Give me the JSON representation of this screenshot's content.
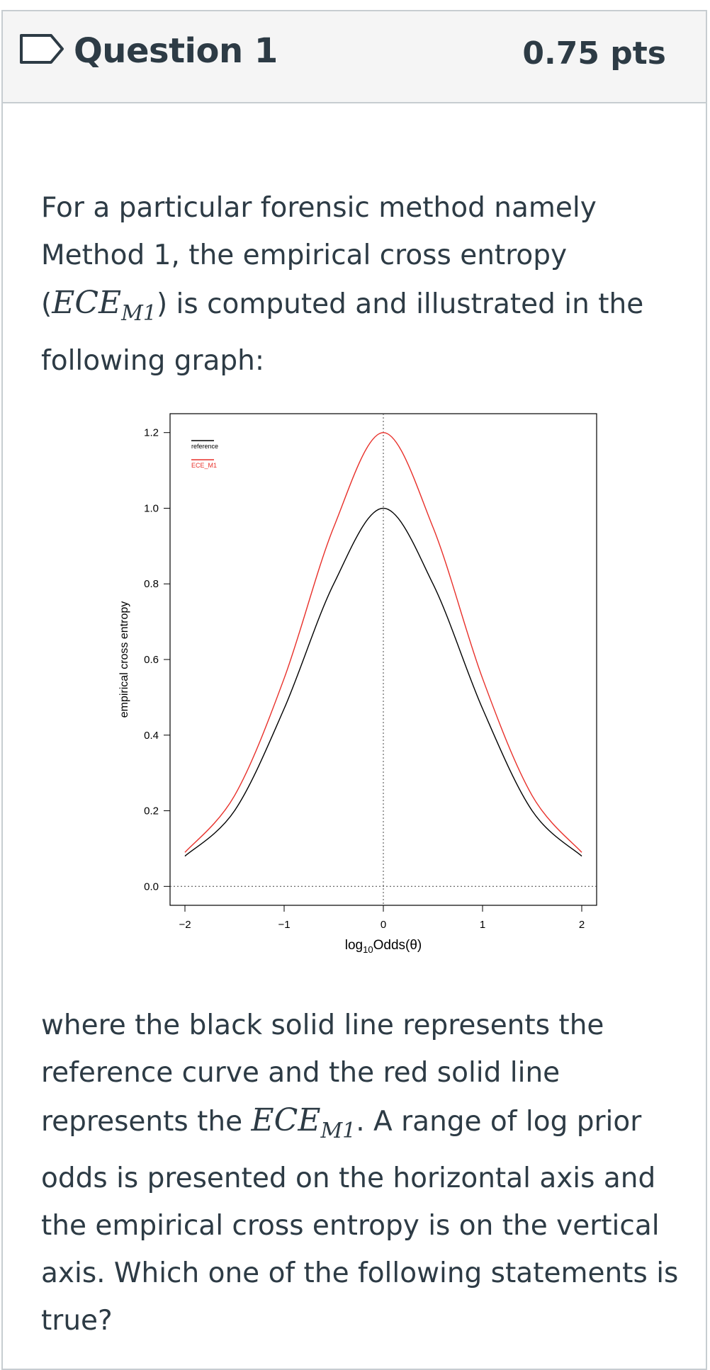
{
  "question": {
    "title": "Question 1",
    "points": "0.75 pts",
    "intro": {
      "part1": "For a particular forensic method namely Method 1, the empirical cross entropy (",
      "math_main": "ECE",
      "math_sub": "M1",
      "part2": ") is computed and illustrated in the following graph:"
    },
    "followup": {
      "part1": "where the black solid line represents the reference curve and the red solid line represents the ",
      "math_main": "ECE",
      "math_sub": "M1",
      "part2": ". A range of log prior odds is presented on the horizontal axis and the empirical cross entropy is on the vertical axis. Which one of the following statements is true?"
    }
  },
  "chart_data": {
    "type": "line",
    "ylabel": "empirical cross entropy",
    "xlabel_main": "log",
    "xlabel_sub": "10",
    "xlabel_rest": "Odds(θ)",
    "xlim": [
      -2.15,
      2.15
    ],
    "ylim": [
      -0.05,
      1.25
    ],
    "xticks": [
      -2,
      -1,
      0,
      1,
      2
    ],
    "xtick_labels": [
      "−2",
      "−1",
      "0",
      "1",
      "2"
    ],
    "yticks": [
      0,
      0.2,
      0.4,
      0.6,
      0.8,
      1.0,
      1.2
    ],
    "ytick_labels": [
      "0.0",
      "0.2",
      "0.4",
      "0.6",
      "0.8",
      "1.0",
      "1.2"
    ],
    "legend_position": "top-left",
    "reference_lines": {
      "vertical_dotted_x": 0,
      "horizontal_dotted_y": 0
    },
    "series": [
      {
        "name": "reference",
        "color": "#000000",
        "x": [
          -2,
          -1.5,
          -1,
          -0.5,
          0,
          0.5,
          1,
          1.5,
          2
        ],
        "y": [
          0.08,
          0.2,
          0.47,
          0.8,
          1.0,
          0.8,
          0.47,
          0.2,
          0.08
        ]
      },
      {
        "name": "ECE_M1",
        "color": "#e8302a",
        "x": [
          -2,
          -1.5,
          -1,
          -0.5,
          0,
          0.5,
          1,
          1.5,
          2
        ],
        "y": [
          0.09,
          0.24,
          0.55,
          0.95,
          1.2,
          0.95,
          0.55,
          0.24,
          0.09
        ]
      }
    ]
  }
}
